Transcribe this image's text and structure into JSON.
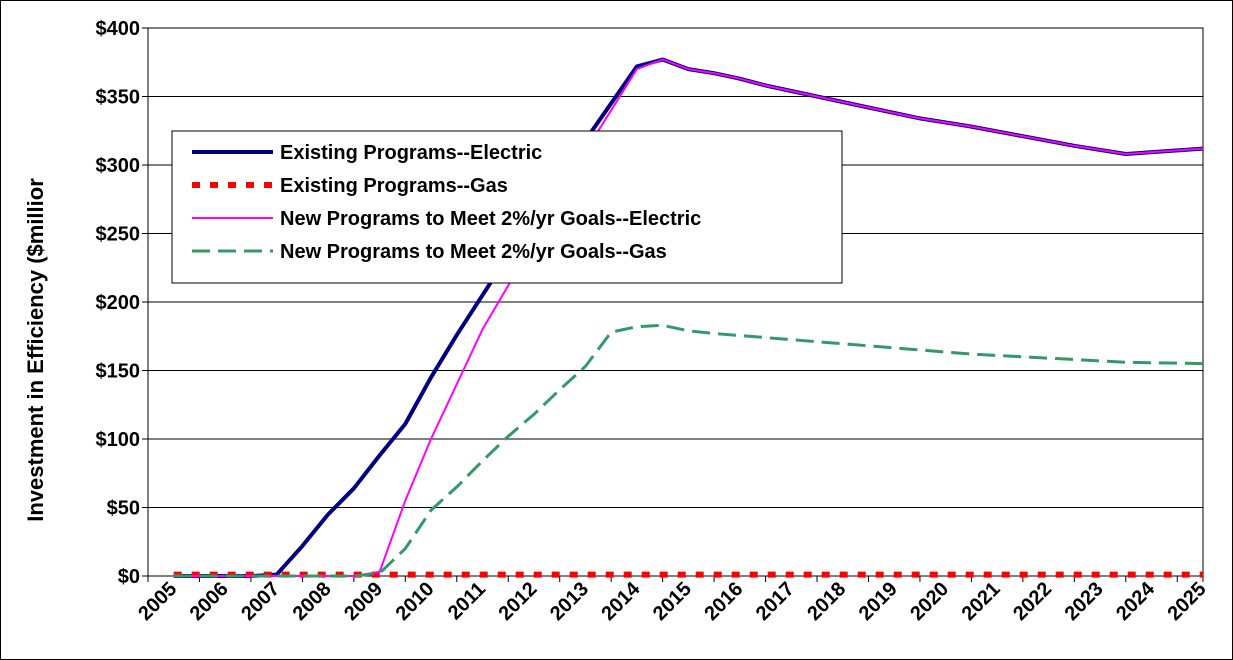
{
  "chart_data": {
    "type": "line",
    "title": "",
    "xlabel": "",
    "ylabel": "Investment in Efficiency ($millior",
    "ylim": [
      0,
      400
    ],
    "yticks": [
      0,
      50,
      100,
      150,
      200,
      250,
      300,
      350,
      400
    ],
    "ytick_labels": [
      "$0",
      "$50",
      "$100",
      "$150",
      "$200",
      "$250",
      "$300",
      "$350",
      "$400"
    ],
    "xlim": [
      2005,
      2025.5
    ],
    "xtick_labels": [
      "2005",
      "2006",
      "2007",
      "2008",
      "2009",
      "2010",
      "2011",
      "2012",
      "2013",
      "2014",
      "2015",
      "2016",
      "2017",
      "2018",
      "2019",
      "2020",
      "2021",
      "2022",
      "2023",
      "2024",
      "2025"
    ],
    "grid": "horizontal",
    "legend_position": "upper-left",
    "series": [
      {
        "name": "Existing Programs--Electric",
        "color": "#000080",
        "style": "solid-thick",
        "x": [
          2005.5,
          2007,
          2007.5,
          2008,
          2008.5,
          2009,
          2009.5,
          2010,
          2010.5,
          2011,
          2011.5,
          2012,
          2012.5,
          2013,
          2013.5,
          2014,
          2014.5,
          2015,
          2015.5,
          2016,
          2016.5,
          2017,
          2018,
          2019,
          2020,
          2021,
          2022,
          2023,
          2024,
          2025.5
        ],
        "y": [
          0,
          0,
          1,
          22,
          45,
          64,
          88,
          111,
          145,
          176,
          205,
          234,
          263,
          290,
          318,
          345,
          372,
          377,
          370,
          367,
          363,
          358,
          350,
          342,
          334,
          328,
          321,
          314,
          308,
          312
        ]
      },
      {
        "name": "Existing Programs--Gas",
        "color": "#ff0000",
        "style": "dotted",
        "x": [
          2005.5,
          2025.5
        ],
        "y": [
          1,
          1
        ]
      },
      {
        "name": "New Programs to Meet 2%/yr Goals--Electric",
        "color": "#ff00ff",
        "style": "solid-thin",
        "x": [
          2005.5,
          2009,
          2009.5,
          2010,
          2010.5,
          2011,
          2011.5,
          2012,
          2012.5,
          2013,
          2013.5,
          2014,
          2014.5,
          2015,
          2015.5,
          2016,
          2016.5,
          2017,
          2018,
          2019,
          2020,
          2021,
          2022,
          2023,
          2024,
          2025.5
        ],
        "y": [
          0,
          0,
          3,
          55,
          100,
          140,
          180,
          212,
          245,
          278,
          310,
          340,
          370,
          377,
          370,
          367,
          363,
          358,
          350,
          342,
          334,
          328,
          321,
          314,
          308,
          312
        ]
      },
      {
        "name": "New Programs to Meet 2%/yr Goals--Gas",
        "color": "#339966",
        "style": "dashed",
        "x": [
          2005.5,
          2009,
          2009.5,
          2010,
          2010.5,
          2011,
          2011.5,
          2012,
          2012.5,
          2013,
          2013.5,
          2014,
          2014.5,
          2015,
          2015.5,
          2016,
          2017,
          2018,
          2019,
          2020,
          2021,
          2022,
          2023,
          2024,
          2025.5
        ],
        "y": [
          0,
          0,
          2,
          20,
          48,
          65,
          84,
          102,
          118,
          136,
          153,
          178,
          182,
          183,
          179,
          177,
          174,
          171,
          168,
          165,
          162,
          160,
          158,
          156,
          155
        ]
      }
    ]
  }
}
